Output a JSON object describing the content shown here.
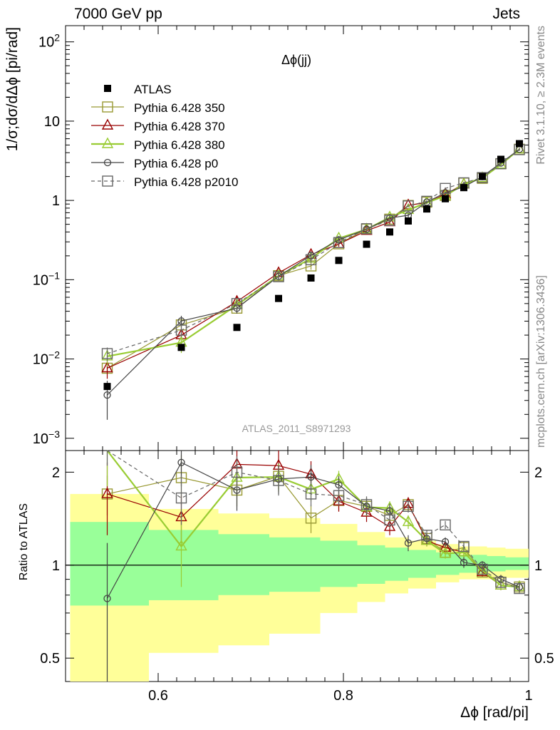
{
  "header": {
    "left": "7000 GeV pp",
    "right": "Jets"
  },
  "side_labels": {
    "top": "Rivet 3.1.10, ≥ 2.3M events",
    "bottom": "mcplots.cern.ch [arXiv:1306.3436]"
  },
  "chart_data": {
    "type": "line",
    "title": "Δϕ(jj)",
    "analysis": "ATLAS_2011_S8971293",
    "xlabel": "Δϕ [rad/pi]",
    "ylabel": "1/σ;dσ/dΔϕ [pi/rad]",
    "ratio_ylabel": "Ratio to ATLAS",
    "xlim": [
      0.5,
      1.0
    ],
    "ylim": [
      0.0007,
      160
    ],
    "yscale": "log",
    "ratio_ylim": [
      0.42,
      2.35
    ],
    "ratio_yscale": "log",
    "x_ticks": [
      "0.6",
      "0.8",
      "1"
    ],
    "y_ticks": [
      "10^-3",
      "10^-2",
      "10^-1",
      "1",
      "10",
      "10^2"
    ],
    "ratio_ticks": [
      "0.5",
      "1",
      "2"
    ],
    "legend_position": "top-left",
    "data": {
      "name": "ATLAS",
      "x": [
        0.545,
        0.625,
        0.685,
        0.73,
        0.765,
        0.795,
        0.825,
        0.85,
        0.87,
        0.89,
        0.91,
        0.93,
        0.95,
        0.97,
        0.99
      ],
      "y": [
        0.0045,
        0.014,
        0.025,
        0.058,
        0.105,
        0.175,
        0.28,
        0.4,
        0.55,
        0.78,
        1.05,
        1.45,
        2.0,
        3.3,
        5.2
      ]
    },
    "bands": {
      "edges": [
        0.505,
        0.59,
        0.665,
        0.72,
        0.775,
        0.815,
        0.845,
        0.87,
        0.9,
        0.925,
        0.955,
        0.975,
        1.0
      ],
      "inner_low": [
        0.74,
        0.77,
        0.8,
        0.82,
        0.85,
        0.87,
        0.89,
        0.91,
        0.93,
        0.945,
        0.955,
        0.965
      ],
      "inner_high": [
        1.38,
        1.3,
        1.26,
        1.23,
        1.2,
        1.16,
        1.14,
        1.12,
        1.1,
        1.08,
        1.07,
        1.06
      ],
      "outer_low": [
        0.3,
        0.52,
        0.55,
        0.6,
        0.7,
        0.76,
        0.81,
        0.84,
        0.88,
        0.9,
        0.9,
        0.91
      ],
      "outer_high": [
        1.7,
        1.52,
        1.47,
        1.42,
        1.36,
        1.28,
        1.23,
        1.2,
        1.17,
        1.15,
        1.14,
        1.13
      ],
      "inner_color": "#99ff99",
      "outer_color": "#ffff99"
    },
    "series": [
      {
        "name": "Pythia 6.428 350",
        "color": "#999933",
        "marker": "square-open",
        "dash": "solid",
        "x": [
          0.545,
          0.625,
          0.685,
          0.73,
          0.765,
          0.795,
          0.825,
          0.85,
          0.87,
          0.89,
          0.91,
          0.93,
          0.95,
          0.97,
          0.99
        ],
        "ratio": [
          1.7,
          1.92,
          1.75,
          1.94,
          1.42,
          1.62,
          1.55,
          1.45,
          1.57,
          1.22,
          1.1,
          1.14,
          0.95,
          0.88,
          0.85
        ],
        "ratio_err": [
          0.25,
          0.35,
          0.2,
          0.18,
          0.15,
          0.12,
          0.1,
          0.08,
          0.07,
          0.05,
          0.04,
          0.04,
          0.03,
          0.03,
          0.03
        ]
      },
      {
        "name": "Pythia 6.428 370",
        "color": "#990000",
        "marker": "triangle-open",
        "dash": "solid",
        "x": [
          0.545,
          0.625,
          0.685,
          0.73,
          0.765,
          0.795,
          0.825,
          0.85,
          0.87,
          0.89,
          0.91,
          0.93,
          0.95,
          0.97,
          0.99
        ],
        "ratio": [
          1.7,
          1.43,
          2.12,
          2.1,
          1.97,
          1.61,
          1.48,
          1.33,
          1.58,
          1.2,
          1.14,
          1.1,
          0.95,
          0.86,
          0.85
        ],
        "ratio_err": [
          0.45,
          0.25,
          0.3,
          0.25,
          0.2,
          0.12,
          0.1,
          0.08,
          0.08,
          0.05,
          0.04,
          0.04,
          0.03,
          0.03,
          0.03
        ]
      },
      {
        "name": "Pythia 6.428 380",
        "color": "#99cc33",
        "marker": "triangle-open",
        "dash": "solid",
        "x": [
          0.545,
          0.625,
          0.685,
          0.73,
          0.765,
          0.795,
          0.825,
          0.85,
          0.87,
          0.89,
          0.91,
          0.93,
          0.95,
          0.97,
          0.99
        ],
        "ratio": [
          2.4,
          1.15,
          1.92,
          1.93,
          1.76,
          1.9,
          1.54,
          1.53,
          1.38,
          1.2,
          1.09,
          1.1,
          0.96,
          0.86,
          0.85
        ],
        "ratio_err": [
          0.6,
          0.3,
          0.25,
          0.2,
          0.15,
          0.12,
          0.1,
          0.08,
          0.07,
          0.05,
          0.04,
          0.04,
          0.03,
          0.03,
          0.03
        ]
      },
      {
        "name": "Pythia 6.428 p0",
        "color": "#444444",
        "marker": "circle-open",
        "dash": "solid",
        "x": [
          0.545,
          0.625,
          0.685,
          0.73,
          0.765,
          0.795,
          0.825,
          0.85,
          0.87,
          0.89,
          0.91,
          0.93,
          0.95,
          0.97,
          0.99
        ],
        "ratio": [
          0.78,
          2.15,
          1.75,
          1.9,
          1.93,
          1.82,
          1.55,
          1.5,
          1.18,
          1.22,
          1.19,
          1.02,
          1.0,
          0.9,
          0.85
        ],
        "ratio_err": [
          0.4,
          0.35,
          0.25,
          0.2,
          0.18,
          0.12,
          0.1,
          0.08,
          0.07,
          0.05,
          0.04,
          0.04,
          0.03,
          0.03,
          0.03
        ]
      },
      {
        "name": "Pythia 6.428 p2010",
        "color": "#666666",
        "marker": "square-open",
        "dash": "dashed",
        "x": [
          0.545,
          0.625,
          0.685,
          0.73,
          0.765,
          0.795,
          0.825,
          0.85,
          0.87,
          0.89,
          0.91,
          0.93,
          0.95,
          0.97,
          0.99
        ],
        "ratio": [
          2.6,
          1.65,
          2.0,
          1.88,
          1.7,
          1.68,
          1.57,
          1.4,
          1.55,
          1.25,
          1.35,
          1.15,
          0.97,
          0.88,
          0.84
        ],
        "ratio_err": [
          0.5,
          0.3,
          0.25,
          0.2,
          0.15,
          0.12,
          0.1,
          0.08,
          0.07,
          0.05,
          0.04,
          0.04,
          0.03,
          0.03,
          0.03
        ]
      }
    ]
  }
}
